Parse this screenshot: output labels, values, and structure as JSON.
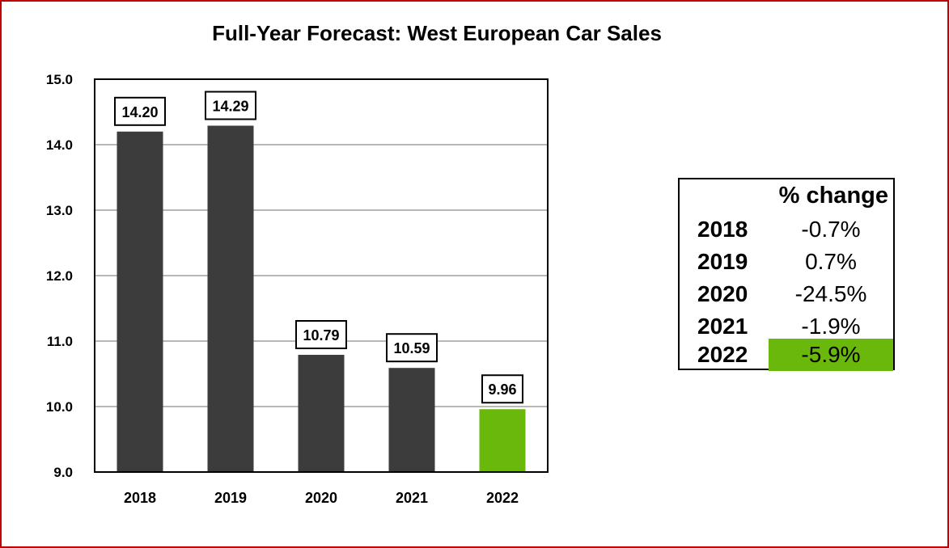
{
  "chart_data": {
    "type": "bar",
    "title": "Full-Year Forecast: West European Car Sales",
    "categories": [
      "2018",
      "2019",
      "2020",
      "2021",
      "2022"
    ],
    "values": [
      14.2,
      14.29,
      10.79,
      10.59,
      9.96
    ],
    "data_labels": [
      "14.20",
      "14.29",
      "10.79",
      "10.59",
      "9.96"
    ],
    "ylim": [
      9.0,
      15.0
    ],
    "yticks": [
      9.0,
      10.0,
      11.0,
      12.0,
      13.0,
      14.0,
      15.0
    ],
    "ytick_labels": [
      "9.0",
      "10.0",
      "11.0",
      "12.0",
      "13.0",
      "14.0",
      "15.0"
    ],
    "xlabel": "",
    "ylabel": "",
    "grid": true,
    "bar_colors": [
      "#3c3c3c",
      "#3c3c3c",
      "#3c3c3c",
      "#3c3c3c",
      "#6ab80b"
    ]
  },
  "change_table": {
    "header": "% change",
    "rows": [
      {
        "year": "2018",
        "change": "-0.7%"
      },
      {
        "year": "2019",
        "change": "0.7%"
      },
      {
        "year": "2020",
        "change": "-24.5%"
      },
      {
        "year": "2021",
        "change": "-1.9%"
      },
      {
        "year": "2022",
        "change": "-5.9%"
      }
    ],
    "highlight_color": "#6ab80b"
  },
  "colors": {
    "border": "#c00000",
    "bar": "#3c3c3c",
    "highlight": "#6ab80b",
    "grid": "#a0a0a0"
  }
}
